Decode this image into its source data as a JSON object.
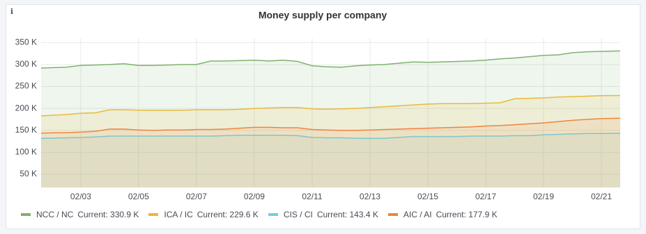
{
  "chart_data": {
    "type": "line",
    "title": "Money supply per company",
    "info_icon": "ℹ",
    "x": [
      1.63,
      2.5,
      3,
      3.5,
      4,
      4.5,
      5,
      5.5,
      6,
      6.5,
      7,
      7.5,
      8,
      8.5,
      9,
      9.5,
      10,
      10.5,
      11,
      11.5,
      12,
      12.5,
      13,
      13.5,
      14,
      14.5,
      15,
      15.5,
      16,
      16.5,
      17,
      17.5,
      18,
      18.5,
      19,
      19.5,
      20,
      20.5,
      21,
      21.65
    ],
    "xlim": [
      1.63,
      21.65
    ],
    "xticks": [
      {
        "value": 3,
        "label": "02/03"
      },
      {
        "value": 5,
        "label": "02/05"
      },
      {
        "value": 7,
        "label": "02/07"
      },
      {
        "value": 9,
        "label": "02/09"
      },
      {
        "value": 11,
        "label": "02/11"
      },
      {
        "value": 13,
        "label": "02/13"
      },
      {
        "value": 15,
        "label": "02/15"
      },
      {
        "value": 17,
        "label": "02/17"
      },
      {
        "value": 19,
        "label": "02/19"
      },
      {
        "value": 21,
        "label": "02/21"
      }
    ],
    "ylim": [
      20000,
      360000
    ],
    "yticks": [
      {
        "value": 50000,
        "label": "50 K"
      },
      {
        "value": 100000,
        "label": "100 K"
      },
      {
        "value": 150000,
        "label": "150 K"
      },
      {
        "value": 200000,
        "label": "200 K"
      },
      {
        "value": 250000,
        "label": "250 K"
      },
      {
        "value": 300000,
        "label": "300 K"
      },
      {
        "value": 350000,
        "label": "350 K"
      }
    ],
    "grid": true,
    "fill": true,
    "series": [
      {
        "name": "NCC / NC",
        "current": "Current: 330.9 K",
        "color": "#7eb26d",
        "values": [
          292000,
          294000,
          298000,
          299000,
          300000,
          302000,
          298000,
          298000,
          299000,
          300000,
          300000,
          308000,
          308000,
          309000,
          310000,
          308000,
          310000,
          307000,
          297000,
          295000,
          294000,
          297000,
          299000,
          300000,
          303000,
          306000,
          305000,
          306000,
          307000,
          308000,
          310000,
          313000,
          315000,
          318000,
          321000,
          322000,
          327000,
          329000,
          330000,
          330900
        ]
      },
      {
        "name": "ICA / IC",
        "current": "Current: 229.6 K",
        "color": "#eab839",
        "values": [
          183000,
          186000,
          189000,
          190000,
          197000,
          197000,
          196000,
          196000,
          196000,
          196000,
          197000,
          197000,
          197000,
          198000,
          200000,
          201000,
          202000,
          202000,
          199000,
          198000,
          199000,
          200000,
          202000,
          204000,
          206000,
          208000,
          210000,
          211000,
          211000,
          211000,
          212000,
          213000,
          222000,
          223000,
          224000,
          226000,
          227000,
          228000,
          229000,
          229600
        ]
      },
      {
        "name": "CIS / CI",
        "current": "Current: 143.4 K",
        "color": "#6ed0e0",
        "values": [
          132000,
          133000,
          134000,
          135000,
          137000,
          137000,
          137000,
          137000,
          137000,
          137000,
          137000,
          137000,
          138000,
          139000,
          139000,
          139000,
          139000,
          138000,
          134000,
          133000,
          133000,
          132000,
          132000,
          132000,
          134000,
          136000,
          136000,
          136000,
          136000,
          137000,
          137000,
          137000,
          138000,
          138000,
          140000,
          141000,
          142000,
          143000,
          143000,
          143400
        ]
      },
      {
        "name": "AIC / AI",
        "current": "Current: 177.9 K",
        "color": "#ef843c",
        "values": [
          144000,
          145000,
          146000,
          148000,
          153000,
          153000,
          151000,
          150000,
          151000,
          151000,
          152000,
          152000,
          153000,
          155000,
          157000,
          157000,
          156000,
          156000,
          152000,
          151000,
          150000,
          150000,
          151000,
          152000,
          153000,
          154000,
          155000,
          156000,
          157000,
          158000,
          160000,
          161000,
          163000,
          165000,
          167000,
          170000,
          173000,
          175000,
          177000,
          177900
        ]
      }
    ]
  }
}
